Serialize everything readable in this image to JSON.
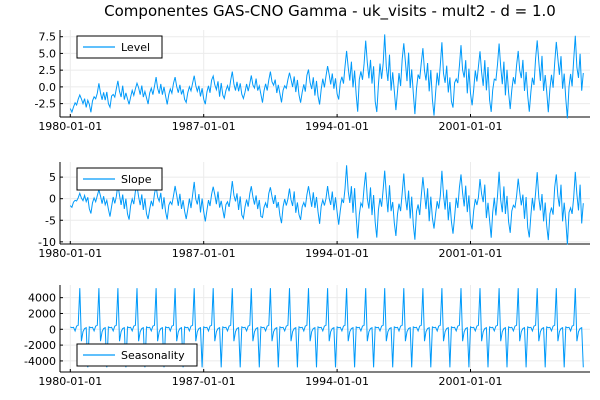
{
  "chart_data": {
    "title": "Componentes GAS-CNO Gamma - uk_visits - mult2 - d = 1.0",
    "type": "line",
    "line_color": "#009AFA",
    "x_ticks": [
      "1980-01-01",
      "1987-01-01",
      "1994-01-01",
      "2001-01-01"
    ],
    "x_range": [
      "1980-01-01",
      "2007-01-01"
    ],
    "panels": [
      {
        "series_name": "Level",
        "legend_position": "top-left",
        "ylim": [
          -4.5,
          8.5
        ],
        "yticks": [
          -2.5,
          0.0,
          2.5,
          5.0,
          7.5
        ],
        "ytick_labels": [
          "-2.5",
          "0.0",
          "2.5",
          "5.0",
          "7.5"
        ],
        "x": [
          "1980-01-01",
          "1981-01-01",
          "1982-01-01",
          "1983-01-01",
          "1984-01-01",
          "1985-01-01",
          "1986-01-01",
          "1987-01-01",
          "1988-01-01",
          "1989-01-01",
          "1990-01-01",
          "1991-01-01",
          "1992-01-01",
          "1993-01-01",
          "1994-01-01",
          "1995-01-01",
          "1996-01-01",
          "1997-01-01",
          "1998-01-01",
          "1999-01-01",
          "2000-01-01",
          "2001-01-01",
          "2002-01-01",
          "2003-01-01",
          "2004-01-01",
          "2005-01-01",
          "2006-01-01"
        ],
        "peaks": [
          -1.0,
          0.5,
          0.8,
          0.8,
          1.5,
          1.5,
          1.5,
          2.0,
          2.0,
          2.0,
          2.5,
          2.5,
          3.0,
          3.5,
          5.0,
          6.5,
          7.5,
          7.0,
          6.5,
          6.0,
          6.5,
          6.0,
          6.0,
          6.0,
          6.5,
          7.0,
          7.5
        ],
        "troughs": [
          -3.8,
          -3.5,
          -3.0,
          -2.5,
          -2.5,
          -2.5,
          -2.5,
          -2.5,
          -2.0,
          -2.0,
          -2.0,
          -2.0,
          -2.5,
          -2.5,
          -2.5,
          -3.0,
          -3.5,
          -3.5,
          -3.5,
          -3.5,
          -3.5,
          -3.5,
          -3.5,
          -3.5,
          -3.5,
          -3.5,
          -4.0
        ]
      },
      {
        "series_name": "Slope",
        "legend_position": "top-left",
        "ylim": [
          -10.5,
          8.5
        ],
        "yticks": [
          -10,
          -5,
          0,
          5
        ],
        "ytick_labels": [
          "-10",
          "-5",
          "0",
          "5"
        ],
        "x": [
          "1980-01-01",
          "1981-01-01",
          "1982-01-01",
          "1983-01-01",
          "1984-01-01",
          "1985-01-01",
          "1986-01-01",
          "1987-01-01",
          "1988-01-01",
          "1989-01-01",
          "1990-01-01",
          "1991-01-01",
          "1992-01-01",
          "1993-01-01",
          "1994-01-01",
          "1995-01-01",
          "1996-01-01",
          "1997-01-01",
          "1998-01-01",
          "1999-01-01",
          "2000-01-01",
          "2001-01-01",
          "2002-01-01",
          "2003-01-01",
          "2004-01-01",
          "2005-01-01",
          "2006-01-01"
        ],
        "peaks": [
          1.5,
          2.0,
          3.0,
          3.5,
          3.0,
          3.0,
          3.5,
          3.5,
          3.5,
          3.5,
          3.0,
          3.0,
          3.5,
          3.5,
          7.0,
          5.5,
          6.0,
          6.5,
          6.0,
          5.5,
          6.0,
          5.5,
          5.5,
          5.5,
          5.5,
          6.0,
          6.0
        ],
        "troughs": [
          -2.0,
          -3.0,
          -4.0,
          -4.5,
          -4.5,
          -4.5,
          -5.0,
          -5.0,
          -5.0,
          -5.0,
          -5.0,
          -5.0,
          -5.0,
          -5.5,
          -7.0,
          -8.0,
          -8.5,
          -8.5,
          -8.5,
          -8.0,
          -8.5,
          -8.0,
          -8.5,
          -8.0,
          -8.5,
          -9.0,
          -9.5
        ]
      },
      {
        "series_name": "Seasonality",
        "legend_position": "bottom-left",
        "ylim": [
          -5400,
          5600
        ],
        "yticks": [
          -4000,
          -2000,
          0,
          2000,
          4000
        ],
        "ytick_labels": [
          "-4000",
          "-2000",
          "0",
          "2000",
          "4000"
        ],
        "pattern_monthly": [
          300,
          200,
          250,
          -200,
          400,
          500,
          5200,
          -1500,
          -300,
          100,
          200,
          -4800
        ]
      }
    ]
  }
}
